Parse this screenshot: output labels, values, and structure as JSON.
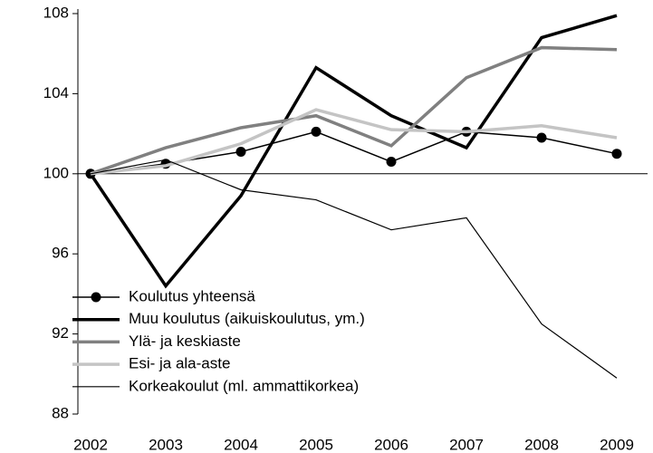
{
  "chart_data": {
    "type": "line",
    "x": [
      "2002",
      "2003",
      "2004",
      "2005",
      "2006",
      "2007",
      "2008",
      "2009"
    ],
    "series": [
      {
        "name": "Koulutus yhteensä",
        "color": "#000000",
        "width": 1.5,
        "marker": "circle",
        "values": [
          100,
          100.5,
          101.1,
          102.1,
          100.6,
          102.1,
          101.8,
          101.0
        ]
      },
      {
        "name": "Muu koulutus (aikuiskoulutus, ym.)",
        "color": "#000000",
        "width": 3.5,
        "values": [
          100,
          94.4,
          98.9,
          105.3,
          102.9,
          101.3,
          106.8,
          107.9
        ]
      },
      {
        "name": "Ylä- ja keskiaste",
        "color": "#808080",
        "width": 3.5,
        "values": [
          100,
          101.3,
          102.3,
          102.9,
          101.4,
          104.8,
          106.3,
          106.2
        ]
      },
      {
        "name": "Esi- ja ala-aste",
        "color": "#c4c4c4",
        "width": 3.5,
        "values": [
          100,
          100.4,
          101.5,
          103.2,
          102.2,
          102.1,
          102.4,
          101.8
        ]
      },
      {
        "name": "Korkeakoulut (ml. ammattikorkea)",
        "color": "#000000",
        "width": 1.2,
        "values": [
          100,
          100.7,
          99.2,
          98.7,
          97.2,
          97.8,
          92.5,
          89.8
        ]
      }
    ],
    "ylim": [
      88,
      108
    ],
    "yticks": [
      88,
      92,
      96,
      100,
      104,
      108
    ],
    "reference_line": 100,
    "legend": "lower left"
  }
}
